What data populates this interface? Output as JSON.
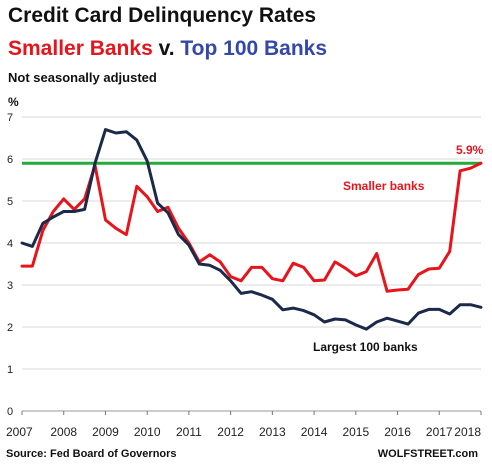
{
  "header": {
    "title": "Credit Card Delinquency Rates",
    "subtitle_red": "Smaller Banks",
    "subtitle_mid": " v. ",
    "subtitle_blue": "Top 100 Banks",
    "note": "Not seasonally adjusted"
  },
  "footer": {
    "source": "Source: Fed Board of Governors",
    "brand": "WOLFSTREET.com"
  },
  "colors": {
    "smaller_banks": "#e8141b",
    "largest_banks": "#1c2a4a",
    "reference_line": "#22aa3a",
    "grid": "#d9d9d9"
  },
  "chart_data": {
    "type": "line",
    "ylabel": "%",
    "ylim": [
      0,
      7
    ],
    "yticks": [
      0,
      1,
      2,
      3,
      4,
      5,
      6,
      7
    ],
    "xlim": [
      2007,
      2018
    ],
    "xticks": [
      2007,
      2008,
      2009,
      2010,
      2011,
      2012,
      2013,
      2014,
      2015,
      2016,
      2017,
      2018
    ],
    "grid": "horizontal",
    "reference_line": {
      "y": 5.9,
      "label": "5.9%"
    },
    "series_labels": {
      "smaller": "Smaller banks",
      "largest": "Largest 100 banks"
    },
    "series": [
      {
        "name": "Smaller banks",
        "x": [
          2007.0,
          2007.25,
          2007.5,
          2007.75,
          2008.0,
          2008.25,
          2008.5,
          2008.75,
          2009.0,
          2009.25,
          2009.5,
          2009.75,
          2010.0,
          2010.25,
          2010.5,
          2010.75,
          2011.0,
          2011.25,
          2011.5,
          2011.75,
          2012.0,
          2012.25,
          2012.5,
          2012.75,
          2013.0,
          2013.25,
          2013.5,
          2013.75,
          2014.0,
          2014.25,
          2014.5,
          2014.75,
          2015.0,
          2015.25,
          2015.5,
          2015.75,
          2016.0,
          2016.25,
          2016.5,
          2016.75,
          2017.0,
          2017.25,
          2017.5,
          2017.75,
          2018.0
        ],
        "values": [
          3.45,
          3.45,
          4.3,
          4.75,
          5.05,
          4.8,
          5.05,
          5.85,
          4.55,
          4.35,
          4.2,
          5.35,
          5.1,
          4.75,
          4.85,
          4.35,
          4.0,
          3.55,
          3.72,
          3.55,
          3.2,
          3.1,
          3.42,
          3.42,
          3.15,
          3.1,
          3.52,
          3.42,
          3.1,
          3.12,
          3.55,
          3.4,
          3.22,
          3.32,
          3.75,
          2.85,
          2.88,
          2.9,
          3.25,
          3.38,
          3.4,
          3.8,
          5.72,
          5.78,
          5.9
        ]
      },
      {
        "name": "Largest 100 banks",
        "x": [
          2007.0,
          2007.25,
          2007.5,
          2007.75,
          2008.0,
          2008.25,
          2008.5,
          2008.75,
          2009.0,
          2009.25,
          2009.5,
          2009.75,
          2010.0,
          2010.25,
          2010.5,
          2010.75,
          2011.0,
          2011.25,
          2011.5,
          2011.75,
          2012.0,
          2012.25,
          2012.5,
          2012.75,
          2013.0,
          2013.25,
          2013.5,
          2013.75,
          2014.0,
          2014.25,
          2014.5,
          2014.75,
          2015.0,
          2015.25,
          2015.5,
          2015.75,
          2016.0,
          2016.25,
          2016.5,
          2016.75,
          2017.0,
          2017.25,
          2017.5,
          2017.75,
          2018.0
        ],
        "values": [
          4.0,
          3.92,
          4.47,
          4.62,
          4.75,
          4.75,
          4.8,
          5.9,
          6.7,
          6.62,
          6.65,
          6.45,
          5.95,
          4.95,
          4.72,
          4.2,
          3.95,
          3.5,
          3.47,
          3.35,
          3.1,
          2.8,
          2.84,
          2.76,
          2.66,
          2.41,
          2.45,
          2.39,
          2.29,
          2.12,
          2.19,
          2.17,
          2.05,
          1.95,
          2.12,
          2.21,
          2.14,
          2.07,
          2.33,
          2.42,
          2.42,
          2.31,
          2.53,
          2.53,
          2.47
        ]
      }
    ]
  }
}
